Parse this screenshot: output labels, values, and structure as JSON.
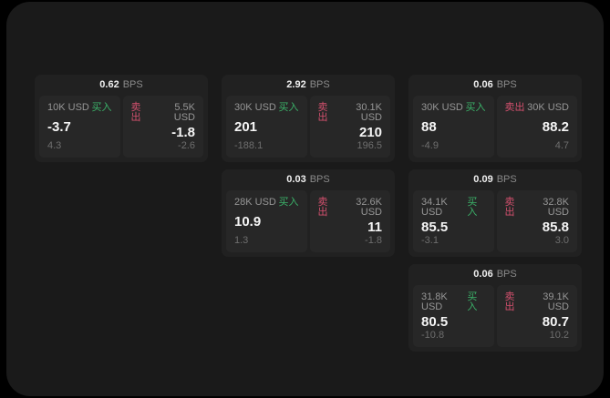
{
  "labels": {
    "buy": "买入",
    "sell": "卖出",
    "bps_unit": "BPS"
  },
  "colors": {
    "page_background": "#000000",
    "app_panel": "#1a1a1a",
    "card_background": "#212121",
    "tile_background": "#272727",
    "buy_accent": "#3bb269",
    "sell_accent": "#d3506e",
    "text_primary": "#f5f5f5",
    "text_secondary": "#969696",
    "text_muted": "#6e6e6e"
  },
  "cards": [
    {
      "row": 1,
      "col": 1,
      "bps": "0.62",
      "buy": {
        "volume": "10K USD",
        "price": "-3.7",
        "change": "4.3"
      },
      "sell": {
        "volume": "5.5K USD",
        "price": "-1.8",
        "change": "-2.6"
      }
    },
    {
      "row": 1,
      "col": 2,
      "bps": "2.92",
      "buy": {
        "volume": "30K USD",
        "price": "201",
        "change": "-188.1"
      },
      "sell": {
        "volume": "30.1K USD",
        "price": "210",
        "change": "196.5"
      }
    },
    {
      "row": 1,
      "col": 3,
      "bps": "0.06",
      "buy": {
        "volume": "30K USD",
        "price": "88",
        "change": "-4.9"
      },
      "sell": {
        "volume": "30K USD",
        "price": "88.2",
        "change": "4.7"
      }
    },
    {
      "row": 2,
      "col": 2,
      "bps": "0.03",
      "buy": {
        "volume": "28K USD",
        "price": "10.9",
        "change": "1.3"
      },
      "sell": {
        "volume": "32.6K USD",
        "price": "11",
        "change": "-1.8"
      }
    },
    {
      "row": 2,
      "col": 3,
      "bps": "0.09",
      "buy": {
        "volume": "34.1K USD",
        "price": "85.5",
        "change": "-3.1"
      },
      "sell": {
        "volume": "32.8K USD",
        "price": "85.8",
        "change": "3.0"
      }
    },
    {
      "row": 3,
      "col": 3,
      "bps": "0.06",
      "buy": {
        "volume": "31.8K USD",
        "price": "80.5",
        "change": "-10.8"
      },
      "sell": {
        "volume": "39.1K USD",
        "price": "80.7",
        "change": "10.2"
      }
    }
  ]
}
